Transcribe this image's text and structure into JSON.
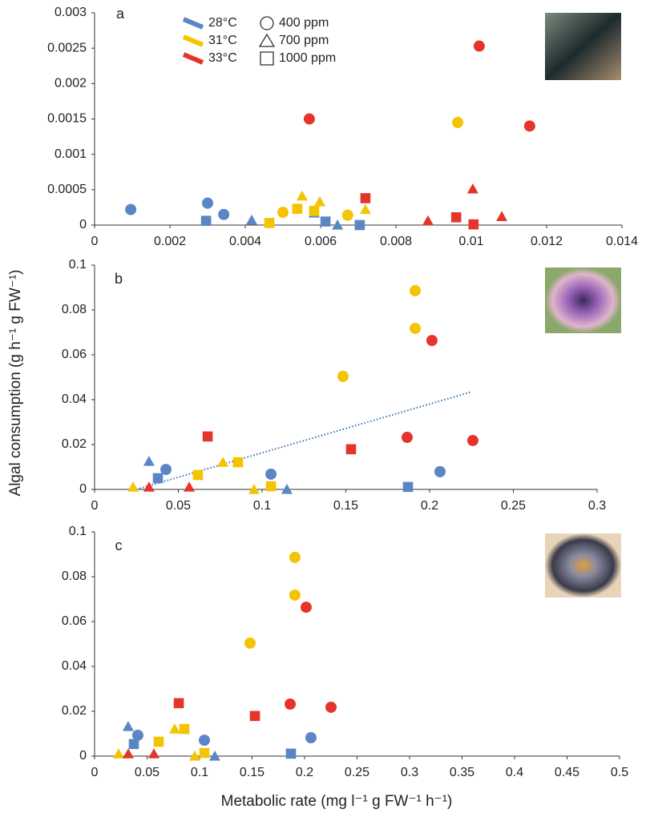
{
  "chart_data": [
    {
      "type": "scatter",
      "panel_label": "a",
      "legend": {
        "temperatures": [
          {
            "label": "28°C",
            "color": "#5b86c5"
          },
          {
            "label": "31°C",
            "color": "#f5c400"
          },
          {
            "label": "33°C",
            "color": "#e5352b"
          }
        ],
        "co2": [
          {
            "label": "400 ppm",
            "marker": "circle"
          },
          {
            "label": "700 ppm",
            "marker": "triangle"
          },
          {
            "label": "1000 ppm",
            "marker": "square"
          }
        ]
      },
      "xlim": [
        0,
        0.014
      ],
      "xticks": [
        0,
        0.002,
        0.004,
        0.006,
        0.008,
        0.01,
        0.012,
        0.014
      ],
      "ylim": [
        0,
        0.003
      ],
      "yticks": [
        0,
        0.0005,
        0.001,
        0.0015,
        0.002,
        0.0025,
        0.003
      ],
      "series": [
        {
          "color": "#5b86c5",
          "marker": "circle",
          "x": [
            0.00096,
            0.003,
            0.00343
          ],
          "y": [
            0.00022,
            0.00031,
            0.00015
          ]
        },
        {
          "color": "#5b86c5",
          "marker": "triangle",
          "x": [
            0.00417,
            0.00583,
            0.00645
          ],
          "y": [
            7e-05,
            0.00017,
            0
          ]
        },
        {
          "color": "#5b86c5",
          "marker": "square",
          "x": [
            0.00296,
            0.00613,
            0.00704
          ],
          "y": [
            6e-05,
            5e-05,
            0
          ]
        },
        {
          "color": "#f5c400",
          "marker": "circle",
          "x": [
            0.005,
            0.00672,
            0.00964
          ],
          "y": [
            0.00018,
            0.00014,
            0.00145
          ]
        },
        {
          "color": "#f5c400",
          "marker": "triangle",
          "x": [
            0.00551,
            0.00598,
            0.00719
          ],
          "y": [
            0.00041,
            0.00033,
            0.00022
          ]
        },
        {
          "color": "#f5c400",
          "marker": "square",
          "x": [
            0.00464,
            0.00538,
            0.00583
          ],
          "y": [
            3e-05,
            0.00023,
            0.0002
          ]
        },
        {
          "color": "#e5352b",
          "marker": "circle",
          "x": [
            0.0057,
            0.01021,
            0.01155
          ],
          "y": [
            0.0015,
            0.00253,
            0.0014
          ]
        },
        {
          "color": "#e5352b",
          "marker": "triangle",
          "x": [
            0.00885,
            0.01004,
            0.01081
          ],
          "y": [
            6e-05,
            0.00051,
            0.00012
          ]
        },
        {
          "color": "#e5352b",
          "marker": "square",
          "x": [
            0.00719,
            0.0096,
            0.01006
          ],
          "y": [
            0.00038,
            0.00011,
            1e-05
          ]
        }
      ]
    },
    {
      "type": "scatter",
      "panel_label": "b",
      "ylabel": "Algal consumption (g h⁻¹ g FW⁻¹)",
      "xlim": [
        0,
        0.3
      ],
      "xticks": [
        0,
        0.05,
        0.1,
        0.15,
        0.2,
        0.25,
        0.3
      ],
      "ylim": [
        0,
        0.1
      ],
      "yticks": [
        0,
        0.02,
        0.04,
        0.06,
        0.08,
        0.1
      ],
      "trendline": {
        "color": "#3a6db5",
        "x": [
          0.025,
          0.225
        ],
        "y": [
          0,
          0.0435
        ]
      },
      "series": [
        {
          "color": "#5b86c5",
          "marker": "circle",
          "x": [
            0.0426,
            0.1053,
            0.2062
          ],
          "y": [
            0.0089,
            0.0068,
            0.0079
          ]
        },
        {
          "color": "#5b86c5",
          "marker": "triangle",
          "x": [
            0.0325,
            0.1148
          ],
          "y": [
            0.0125,
            0
          ]
        },
        {
          "color": "#5b86c5",
          "marker": "square",
          "x": [
            0.0378,
            0.1871
          ],
          "y": [
            0.005,
            0.0011
          ]
        },
        {
          "color": "#f5c400",
          "marker": "circle",
          "x": [
            0.1483,
            0.1914,
            0.1914
          ],
          "y": [
            0.0504,
            0.0718,
            0.0886
          ]
        },
        {
          "color": "#f5c400",
          "marker": "triangle",
          "x": [
            0.023,
            0.0766,
            0.0952
          ],
          "y": [
            0.001,
            0.0121,
            0
          ]
        },
        {
          "color": "#f5c400",
          "marker": "square",
          "x": [
            0.0617,
            0.0856,
            0.1053
          ],
          "y": [
            0.0064,
            0.0121,
            0.0014
          ]
        },
        {
          "color": "#e5352b",
          "marker": "circle",
          "x": [
            0.1866,
            0.2014,
            0.2258
          ],
          "y": [
            0.0232,
            0.0664,
            0.0218
          ]
        },
        {
          "color": "#e5352b",
          "marker": "triangle",
          "x": [
            0.0325,
            0.0565
          ],
          "y": [
            0.001,
            0.001
          ]
        },
        {
          "color": "#e5352b",
          "marker": "square",
          "x": [
            0.0675,
            0.1531
          ],
          "y": [
            0.0236,
            0.0179
          ]
        }
      ]
    },
    {
      "type": "scatter",
      "panel_label": "c",
      "xlabel": "Metabolic rate (mg l⁻¹ g FW⁻¹ h⁻¹)",
      "xlim": [
        0,
        0.5
      ],
      "xticks": [
        0,
        0.05,
        0.1,
        0.15,
        0.2,
        0.25,
        0.3,
        0.35,
        0.4,
        0.45,
        0.5
      ],
      "ylim": [
        0,
        0.1
      ],
      "yticks": [
        0,
        0.02,
        0.04,
        0.06,
        0.08,
        0.1
      ],
      "series": [
        {
          "color": "#5b86c5",
          "marker": "circle",
          "x": [
            0.0412,
            0.1046,
            0.2061
          ],
          "y": [
            0.0093,
            0.0071,
            0.0082
          ]
        },
        {
          "color": "#5b86c5",
          "marker": "triangle",
          "x": [
            0.032,
            0.1145
          ],
          "y": [
            0.0132,
            0
          ]
        },
        {
          "color": "#5b86c5",
          "marker": "square",
          "x": [
            0.0374,
            0.187
          ],
          "y": [
            0.0054,
            0.0011
          ]
        },
        {
          "color": "#f5c400",
          "marker": "circle",
          "x": [
            0.1481,
            0.1908,
            0.1908
          ],
          "y": [
            0.0504,
            0.0718,
            0.0886
          ]
        },
        {
          "color": "#f5c400",
          "marker": "triangle",
          "x": [
            0.0229,
            0.0763,
            0.0954
          ],
          "y": [
            0.001,
            0.0121,
            0
          ]
        },
        {
          "color": "#f5c400",
          "marker": "square",
          "x": [
            0.0611,
            0.0855,
            0.1046
          ],
          "y": [
            0.0064,
            0.0121,
            0.0014
          ]
        },
        {
          "color": "#e5352b",
          "marker": "circle",
          "x": [
            0.1863,
            0.2015,
            0.2252
          ],
          "y": [
            0.0232,
            0.0664,
            0.0218
          ]
        },
        {
          "color": "#e5352b",
          "marker": "triangle",
          "x": [
            0.0321,
            0.0565
          ],
          "y": [
            0.001,
            0.001
          ]
        },
        {
          "color": "#e5352b",
          "marker": "square",
          "x": [
            0.0802,
            0.1527
          ],
          "y": [
            0.0236,
            0.0179
          ]
        }
      ]
    }
  ]
}
